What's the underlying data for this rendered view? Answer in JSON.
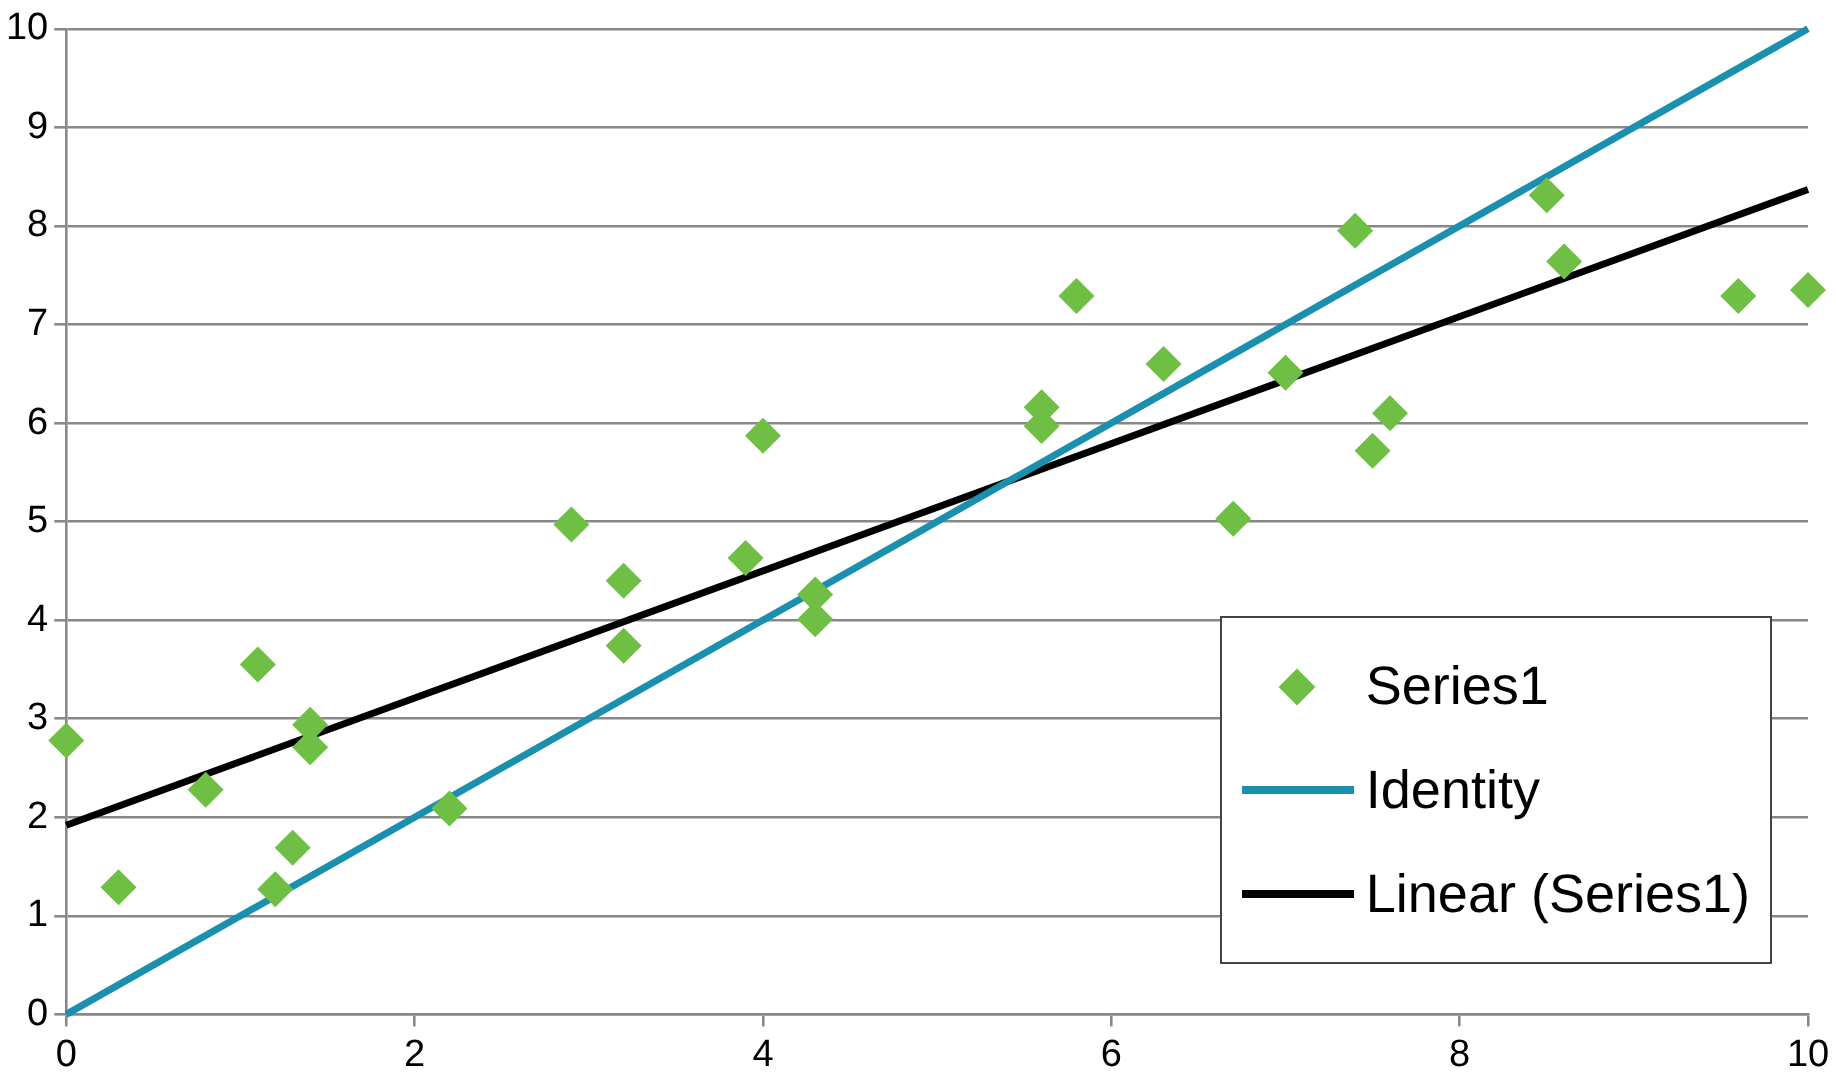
{
  "chart_data": {
    "type": "scatter",
    "xlim": [
      0,
      10
    ],
    "ylim": [
      0,
      10
    ],
    "xticks": [
      0,
      2,
      4,
      6,
      8,
      10
    ],
    "yticks": [
      0,
      1,
      2,
      3,
      4,
      5,
      6,
      7,
      8,
      9,
      10
    ],
    "grid": "y",
    "legend": "bottom right",
    "series": [
      {
        "name": "Series1",
        "marker": "diamond",
        "color": "#6fbf44",
        "x": [
          0,
          0.3,
          0.8,
          1.1,
          1.2,
          1.3,
          1.4,
          1.4,
          2.2,
          2.9,
          3.2,
          3.2,
          3.9,
          4.0,
          4.3,
          4.3,
          5.6,
          5.6,
          5.8,
          6.3,
          6.7,
          7.0,
          7.4,
          7.5,
          7.6,
          8.5,
          8.6,
          9.6,
          10
        ],
        "values": [
          2.78,
          1.29,
          2.28,
          3.55,
          1.27,
          1.69,
          2.94,
          2.71,
          2.09,
          4.97,
          4.4,
          3.74,
          4.63,
          5.87,
          4.26,
          4.01,
          6.16,
          5.97,
          7.29,
          6.6,
          5.03,
          6.51,
          7.95,
          5.72,
          6.1,
          8.31,
          7.64,
          7.29,
          7.35
        ]
      },
      {
        "name": "Identity",
        "type": "line",
        "marker": "none",
        "color": "#1a8fae",
        "x": [
          0,
          10
        ],
        "values": [
          0,
          10
        ]
      },
      {
        "name": "Linear (Series1)",
        "type": "line",
        "marker": "none",
        "color": "#000000",
        "x": [
          0,
          10
        ],
        "values": [
          1.92,
          8.37
        ]
      }
    ]
  }
}
